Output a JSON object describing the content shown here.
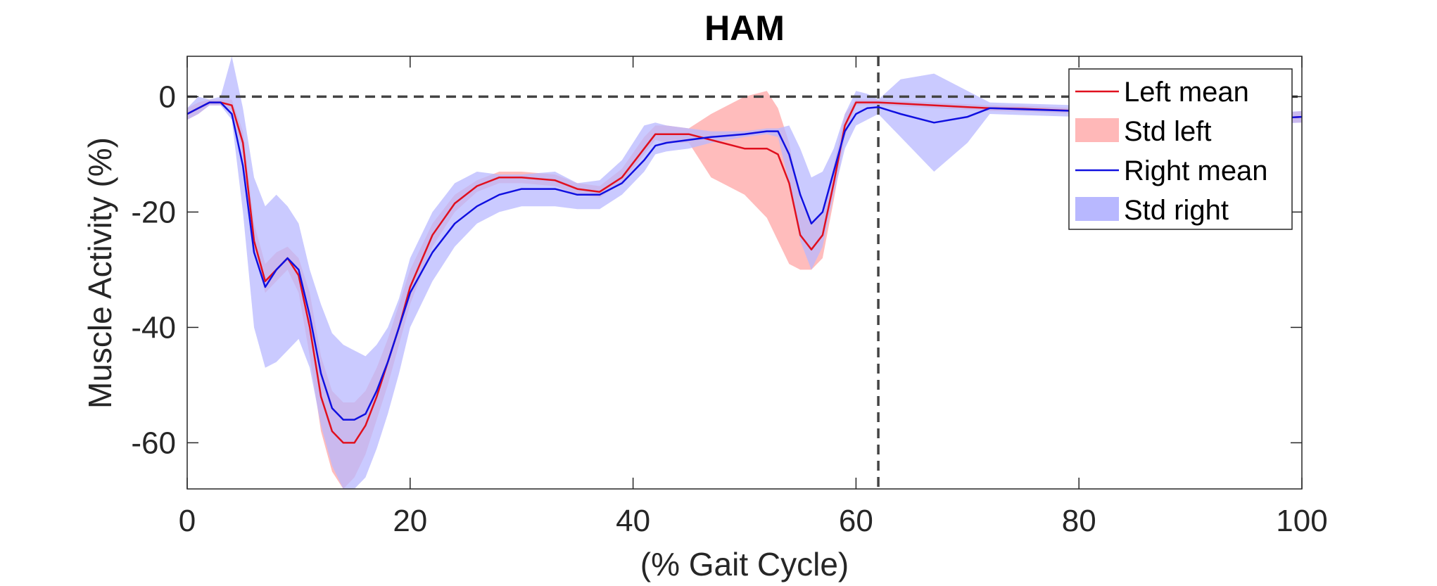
{
  "chart_data": {
    "type": "line",
    "title": "HAM",
    "xlabel": "(% Gait Cycle)",
    "ylabel": "Muscle Activity (%)",
    "xlim": [
      0,
      100
    ],
    "ylim": [
      -68,
      7
    ],
    "xticks": [
      0,
      20,
      40,
      60,
      80,
      100
    ],
    "yticks": [
      0,
      -20,
      -40,
      -60
    ],
    "grid": false,
    "legend_position": "top-right",
    "reference_lines": [
      {
        "orientation": "horizontal",
        "value": 0,
        "style": "dashed"
      },
      {
        "orientation": "vertical",
        "value": 62,
        "style": "dashed"
      }
    ],
    "colors": {
      "left_mean": "#e0101e",
      "left_std": "#ffb8b8",
      "right_mean": "#1010e0",
      "right_std": "#b8b8ff",
      "reference": "#444444"
    },
    "legend": [
      "Left mean",
      "Std left",
      "Right mean",
      "Std right"
    ],
    "x": [
      0,
      1,
      2,
      3,
      4,
      5,
      6,
      7,
      8,
      9,
      10,
      11,
      12,
      13,
      14,
      15,
      16,
      17,
      18,
      19,
      20,
      22,
      24,
      26,
      28,
      30,
      33,
      35,
      37,
      39,
      41,
      42,
      43,
      45,
      47,
      50,
      52,
      53,
      54,
      55,
      56,
      57,
      58,
      59,
      60,
      61,
      62,
      64,
      67,
      70,
      72,
      75,
      80,
      85,
      90,
      95,
      100
    ],
    "series": [
      {
        "name": "Left mean",
        "mean": [
          -3,
          -2,
          -1,
          -1,
          -1.5,
          -8,
          -25,
          -32,
          -30,
          -28,
          -31,
          -40,
          -52,
          -58,
          -60,
          -60,
          -57,
          -52,
          -46,
          -40,
          -33,
          -24,
          -18.5,
          -15.5,
          -14,
          -14,
          -14.5,
          -16,
          -16.5,
          -14,
          -9,
          -6.5,
          -6.5,
          -6.5,
          -7.5,
          -9,
          -9,
          -10,
          -15,
          -24,
          -26.5,
          -24,
          -15,
          -5,
          -1,
          -1,
          -1,
          -1.2,
          -1.5,
          -1.8,
          -2,
          -2.1,
          -2.5,
          -3,
          -3.5,
          -4,
          -3.5
        ],
        "lower": [
          -4,
          -3,
          -1.5,
          -1.5,
          -2.5,
          -10,
          -27,
          -34,
          -32,
          -30,
          -34,
          -45,
          -58,
          -65,
          -68,
          -66,
          -62,
          -56,
          -50,
          -43,
          -36,
          -26,
          -20,
          -16.5,
          -15,
          -15,
          -15.5,
          -17,
          -17.5,
          -15,
          -10,
          -7.5,
          -8,
          -8,
          -14,
          -17,
          -21,
          -25,
          -29,
          -30,
          -30,
          -28,
          -18,
          -7,
          -1.5,
          -1.5,
          -1.5,
          -1.7,
          -2,
          -2.3,
          -2.5,
          -2.6,
          -3,
          -3.5,
          -4,
          -4.5,
          -4.5
        ],
        "upper": [
          -2,
          -1,
          -0.5,
          -0.5,
          -0.5,
          -6,
          -22,
          -29,
          -27,
          -26,
          -28,
          -34,
          -45,
          -51,
          -53,
          -53,
          -51,
          -47,
          -42,
          -36,
          -30,
          -22,
          -17,
          -14.5,
          -13,
          -13,
          -13.5,
          -15,
          -15.5,
          -12.5,
          -7,
          -5,
          -5,
          -5.5,
          -3,
          0,
          1,
          -2,
          -8,
          -18,
          -22,
          -20,
          -12,
          -3,
          -0.5,
          -0.5,
          -0.5,
          -0.7,
          -1,
          -1.3,
          -1.5,
          -1.6,
          -2,
          -2.5,
          -3,
          -3.5,
          -2.5
        ]
      },
      {
        "name": "Right mean",
        "mean": [
          -3,
          -2,
          -1,
          -1,
          -3,
          -12,
          -27,
          -33,
          -30,
          -28,
          -30,
          -38,
          -48,
          -54,
          -56,
          -56,
          -55,
          -51,
          -46,
          -40,
          -34,
          -27,
          -22,
          -19,
          -17,
          -16,
          -16,
          -17,
          -17,
          -15,
          -11,
          -8.5,
          -8,
          -7.5,
          -7,
          -6.5,
          -6,
          -6,
          -10,
          -17,
          -22,
          -20,
          -13,
          -6,
          -3,
          -2,
          -1.8,
          -3,
          -4.5,
          -3.5,
          -2,
          -2.2,
          -2.5,
          -3,
          -3.5,
          -4,
          -3.5
        ],
        "lower": [
          -4,
          -3,
          -1.5,
          -1.5,
          -4,
          -20,
          -40,
          -47,
          -46,
          -44,
          -42,
          -47,
          -57,
          -64,
          -68,
          -68,
          -66,
          -61,
          -55,
          -48,
          -40,
          -32,
          -26,
          -22,
          -20,
          -19,
          -19,
          -19.5,
          -19.5,
          -17,
          -13,
          -10,
          -9.5,
          -9,
          -8,
          -7,
          -6.5,
          -7,
          -15,
          -25,
          -30,
          -26,
          -17,
          -9,
          -5,
          -4,
          -3,
          -7,
          -13,
          -8,
          -3,
          -3.2,
          -3.5,
          -4,
          -4.5,
          -5,
          -4.5
        ],
        "upper": [
          -2,
          0,
          -0.5,
          0,
          7,
          -2,
          -14,
          -19,
          -17,
          -19,
          -22,
          -30,
          -36,
          -41,
          -43,
          -44,
          -45,
          -43,
          -40,
          -35,
          -28,
          -20,
          -15,
          -13,
          -13.5,
          -13.5,
          -13,
          -15,
          -14.5,
          -11,
          -5,
          -4.5,
          -5,
          -5.5,
          -6,
          -6,
          -5.5,
          -5.5,
          -5,
          -9,
          -14,
          -13,
          -9,
          -3,
          1,
          0.5,
          -0.5,
          3,
          4,
          1,
          -1,
          -1.2,
          -1.5,
          -2,
          -2.5,
          -3,
          -2.5
        ]
      }
    ]
  }
}
